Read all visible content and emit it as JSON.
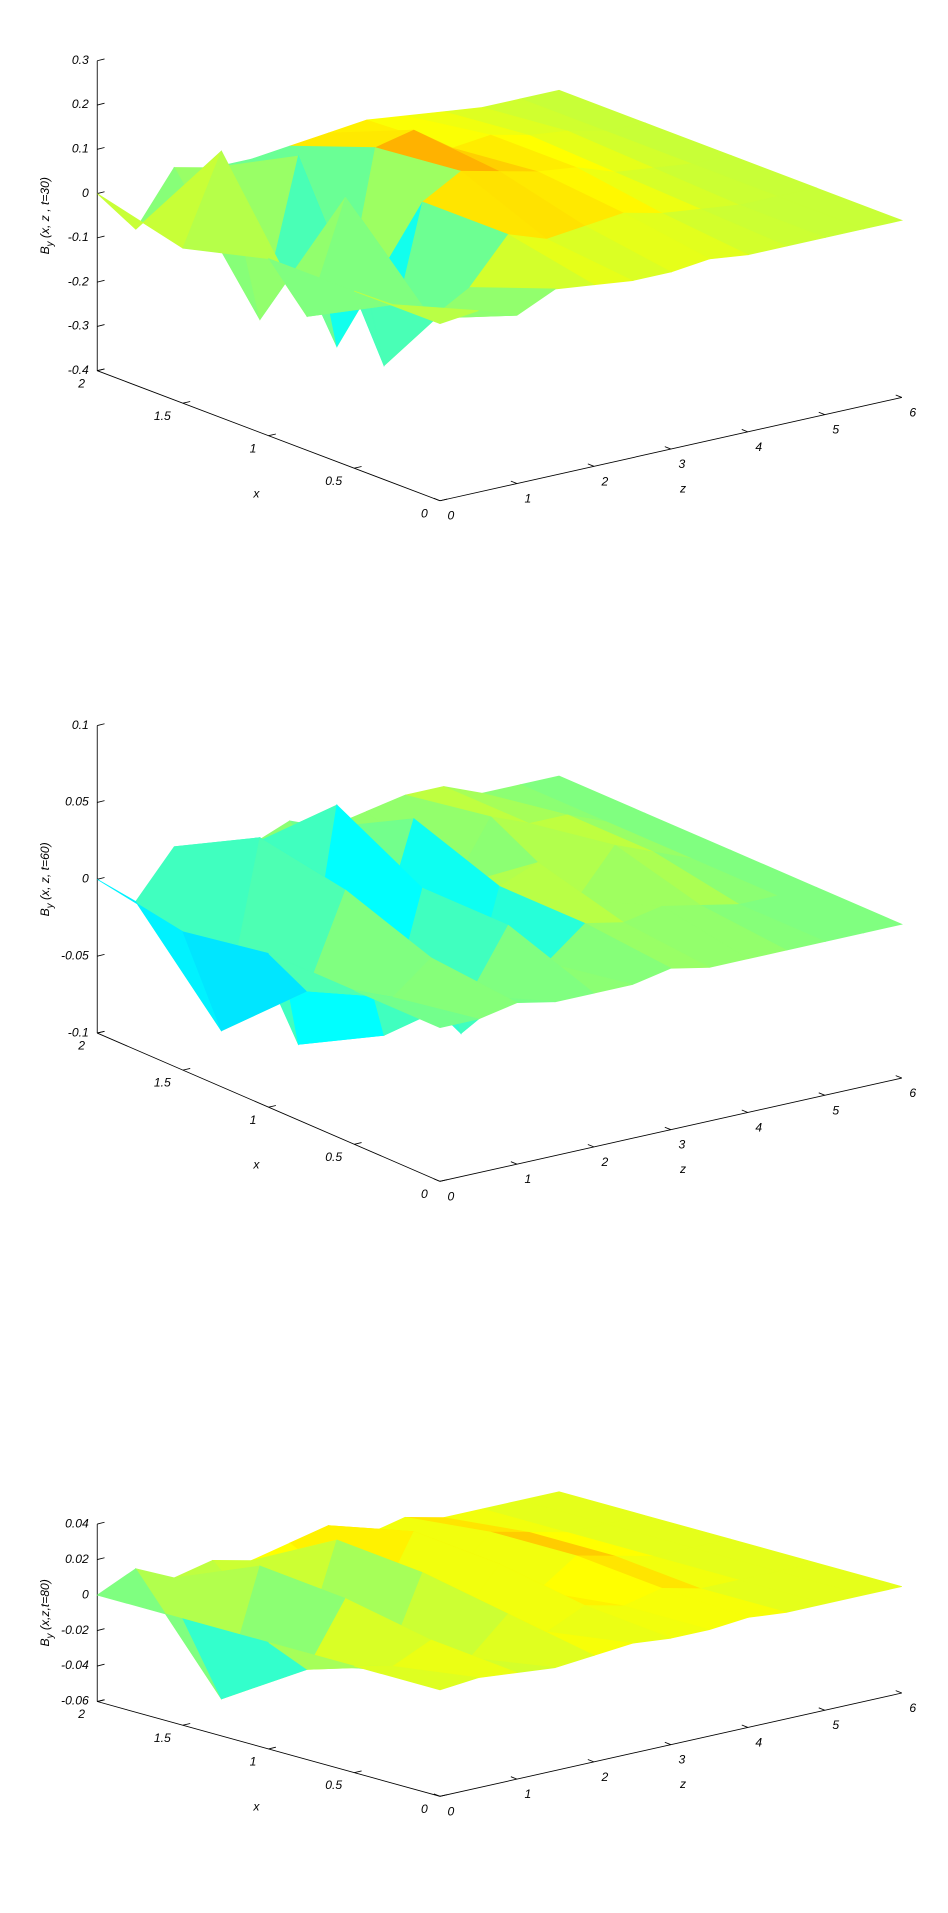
{
  "chart_data": [
    {
      "type": "surface",
      "ylabel": [
        "B",
        "y",
        " (x, z , t=30)"
      ],
      "xlabel": "x",
      "zlabel": "z",
      "x": [
        0,
        0.5,
        1,
        1.5,
        2
      ],
      "z": [
        0,
        0.5,
        1,
        1.5,
        2,
        2.5,
        3,
        3.5,
        4,
        4.5,
        5,
        5.5,
        6
      ],
      "values": [
        [
          0,
          0.01,
          -0.02,
          0.02,
          0.01,
          0,
          0,
          0.01,
          0,
          0,
          0,
          0,
          0
        ],
        [
          0,
          -0.05,
          -0.1,
          -0.05,
          0.05,
          0.02,
          0.03,
          0.04,
          0.02,
          0.01,
          0,
          0,
          0
        ],
        [
          0,
          -0.15,
          0.1,
          -0.3,
          0.05,
          0.1,
          0.08,
          0.06,
          0.05,
          0.02,
          0.01,
          0,
          0
        ],
        [
          -0.05,
          0.15,
          -0.25,
          0.1,
          -0.35,
          0.08,
          0.1,
          0.04,
          0.05,
          0.03,
          0.02,
          0,
          0
        ],
        [
          0,
          -0.1,
          0.02,
          0,
          0,
          0.01,
          0.02,
          0.03,
          0.02,
          0.01,
          0,
          0,
          0
        ]
      ],
      "ylim": [
        -0.4,
        0.3
      ],
      "yticks": [
        -0.4,
        -0.3,
        -0.2,
        -0.1,
        0,
        0.1,
        0.2,
        0.3
      ],
      "xlim": [
        0,
        2
      ],
      "xticks": [
        0,
        0.5,
        1,
        1.5,
        2
      ],
      "zlim": [
        0,
        6
      ],
      "zticks": [
        0,
        1,
        2,
        3,
        4,
        5,
        6
      ],
      "colormap": "jet"
    },
    {
      "type": "surface",
      "ylabel": [
        "B",
        "y",
        " (x, z, t=60)"
      ],
      "xlabel": "x",
      "zlabel": "z",
      "x": [
        0,
        0.5,
        1,
        1.5,
        2
      ],
      "z": [
        0,
        0.5,
        1,
        1.5,
        2,
        2.5,
        3,
        3.5,
        4,
        4.5,
        5,
        5.5,
        6
      ],
      "values": [
        [
          0,
          0,
          0.005,
          0,
          0,
          0,
          0.005,
          0,
          0,
          0,
          0,
          0,
          0
        ],
        [
          0,
          -0.01,
          0.01,
          -0.02,
          0.02,
          -0.01,
          0.01,
          0.005,
          0.01,
          0.005,
          0,
          0,
          0
        ],
        [
          0,
          -0.03,
          0.03,
          -0.07,
          0.02,
          -0.08,
          0.01,
          0.02,
          -0.01,
          0.02,
          0.01,
          0,
          0
        ],
        [
          -0.01,
          -0.08,
          0.04,
          -0.1,
          0.05,
          -0.05,
          0.03,
          -0.02,
          0.02,
          0.01,
          0.01,
          0,
          0
        ],
        [
          0,
          -0.02,
          0.01,
          0,
          0,
          0.01,
          0,
          0.005,
          0.01,
          0.01,
          0,
          0,
          0
        ]
      ],
      "ylim": [
        -0.1,
        0.1
      ],
      "yticks": [
        -0.1,
        -0.05,
        0,
        0.05,
        0.1
      ],
      "xlim": [
        0,
        2
      ],
      "xticks": [
        0,
        0.5,
        1,
        1.5,
        2
      ],
      "zlim": [
        0,
        6
      ],
      "zticks": [
        0,
        1,
        2,
        3,
        4,
        5,
        6
      ],
      "colormap": "jet"
    },
    {
      "type": "surface",
      "ylabel": [
        "B",
        "y",
        " (x,z,t=80)"
      ],
      "xlabel": "x",
      "zlabel": "z",
      "x": [
        0,
        0.5,
        1,
        1.5,
        2
      ],
      "z": [
        0,
        0.5,
        1,
        1.5,
        2,
        2.5,
        3,
        3.5,
        4,
        4.5,
        5,
        5.5,
        6
      ],
      "values": [
        [
          0,
          0.002,
          0,
          -0.002,
          0,
          0.002,
          0,
          0,
          0.002,
          0,
          0,
          0,
          0
        ],
        [
          0,
          -0.005,
          0.005,
          -0.01,
          0.01,
          -0.005,
          0.005,
          0,
          0.005,
          0,
          0,
          0,
          0
        ],
        [
          0,
          -0.02,
          0.015,
          -0.03,
          0.02,
          -0.01,
          0.015,
          -0.005,
          0.01,
          0.005,
          0,
          0,
          0
        ],
        [
          0,
          -0.05,
          0.02,
          -0.04,
          0.025,
          -0.02,
          0.02,
          -0.01,
          0.01,
          0.005,
          0,
          0,
          0
        ],
        [
          0,
          0.01,
          0,
          0.005,
          0,
          0.005,
          0.01,
          0,
          0.005,
          0,
          0,
          0,
          0
        ]
      ],
      "ylim": [
        -0.06,
        0.04
      ],
      "yticks": [
        -0.06,
        -0.04,
        -0.02,
        0,
        0.02,
        0.04
      ],
      "xlim": [
        0,
        2
      ],
      "xticks": [
        0,
        0.5,
        1,
        1.5,
        2
      ],
      "zlim": [
        0,
        6
      ],
      "zticks": [
        0,
        1,
        2,
        3,
        4,
        5,
        6
      ],
      "colormap": "jet"
    }
  ]
}
